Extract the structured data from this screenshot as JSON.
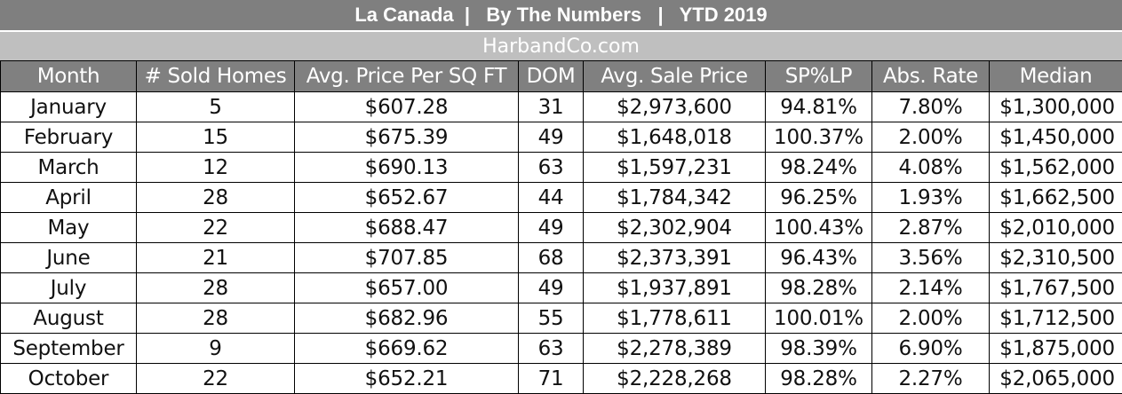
{
  "title": "La Canada  |   By The Numbers   |   YTD 2019",
  "site": "HarbandCo.com",
  "columns": [
    "Month",
    "# Sold Homes",
    "Avg. Price Per SQ FT",
    "DOM",
    "Avg. Sale Price",
    "SP%LP",
    "Abs. Rate",
    "Median"
  ],
  "rows": [
    [
      "January",
      "5",
      "$607.28",
      "31",
      "$2,973,600",
      "94.81%",
      "7.80%",
      "$1,300,000"
    ],
    [
      "February",
      "15",
      "$675.39",
      "49",
      "$1,648,018",
      "100.37%",
      "2.00%",
      "$1,450,000"
    ],
    [
      "March",
      "12",
      "$690.13",
      "63",
      "$1,597,231",
      "98.24%",
      "4.08%",
      "$1,562,000"
    ],
    [
      "April",
      "28",
      "$652.67",
      "44",
      "$1,784,342",
      "96.25%",
      "1.93%",
      "$1,662,500"
    ],
    [
      "May",
      "22",
      "$688.47",
      "49",
      "$2,302,904",
      "100.43%",
      "2.87%",
      "$2,010,000"
    ],
    [
      "June",
      "21",
      "$707.85",
      "68",
      "$2,373,391",
      "96.43%",
      "3.56%",
      "$2,310,500"
    ],
    [
      "July",
      "28",
      "$657.00",
      "49",
      "$1,937,891",
      "98.28%",
      "2.14%",
      "$1,767,500"
    ],
    [
      "August",
      "28",
      "$682.96",
      "55",
      "$1,778,611",
      "100.01%",
      "2.00%",
      "$1,712,500"
    ],
    [
      "September",
      "9",
      "$669.62",
      "63",
      "$2,278,389",
      "98.39%",
      "6.90%",
      "$1,875,000"
    ],
    [
      "October",
      "22",
      "$652.21",
      "71",
      "$2,228,268",
      "98.28%",
      "2.27%",
      "$2,065,000"
    ]
  ]
}
